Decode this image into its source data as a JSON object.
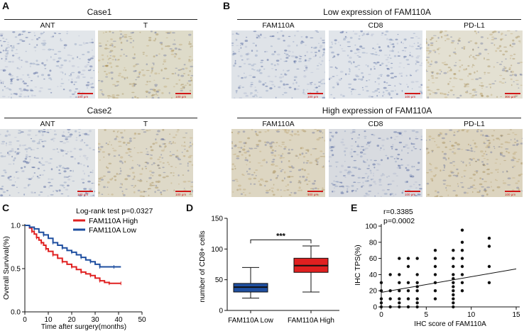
{
  "panels": {
    "A": {
      "label": "A",
      "case1": {
        "title": "Case1",
        "col1": "ANT",
        "col2": "T"
      },
      "case2": {
        "title": "Case2",
        "col1": "ANT",
        "col2": "T"
      },
      "scale": "100 μm"
    },
    "B": {
      "label": "B",
      "low": {
        "title": "Low expression of FAM110A",
        "cols": [
          "FAM110A",
          "CD8",
          "PD-L1"
        ]
      },
      "high": {
        "title": "High expression of FAM110A",
        "cols": [
          "FAM110A",
          "CD8",
          "PD-L1"
        ]
      },
      "scale": "100 μm"
    },
    "C": {
      "label": "C"
    },
    "D": {
      "label": "D",
      "significance": "***"
    },
    "E": {
      "label": "E",
      "stats_r": "r=0.3385",
      "stats_p": "p=0.0002"
    }
  },
  "colors": {
    "high": "#e02020",
    "low": "#1f4fa0",
    "box_low": "#1f4fa0",
    "box_high": "#e02020",
    "scale_bar": "#d01818"
  },
  "chart_data": [
    {
      "panel": "C",
      "type": "line",
      "title": "",
      "annotation": "Log-rank test p=0.0327",
      "xlabel": "Time after surgery(months)",
      "ylabel": "Overall Survival(%)",
      "xlim": [
        0,
        50
      ],
      "ylim": [
        0,
        1
      ],
      "xticks": [
        0,
        10,
        20,
        30,
        40,
        50
      ],
      "yticks": [
        0.0,
        0.5,
        1.0
      ],
      "ytick_labels": [
        "0.0",
        "0.5",
        "1.0"
      ],
      "series": [
        {
          "name": "FAM110A High",
          "color": "#e02020",
          "points": [
            [
              0,
              1.0
            ],
            [
              2,
              0.97
            ],
            [
              3,
              0.93
            ],
            [
              4,
              0.9
            ],
            [
              5,
              0.86
            ],
            [
              6,
              0.83
            ],
            [
              7,
              0.8
            ],
            [
              8,
              0.77
            ],
            [
              9,
              0.73
            ],
            [
              10,
              0.7
            ],
            [
              12,
              0.66
            ],
            [
              14,
              0.62
            ],
            [
              16,
              0.58
            ],
            [
              18,
              0.55
            ],
            [
              20,
              0.52
            ],
            [
              22,
              0.49
            ],
            [
              24,
              0.46
            ],
            [
              26,
              0.44
            ],
            [
              28,
              0.42
            ],
            [
              30,
              0.39
            ],
            [
              32,
              0.36
            ],
            [
              34,
              0.34
            ],
            [
              36,
              0.33
            ],
            [
              38,
              0.33
            ],
            [
              41,
              0.33
            ]
          ]
        },
        {
          "name": "FAM110A Low",
          "color": "#1f4fa0",
          "points": [
            [
              0,
              1.0
            ],
            [
              2,
              0.98
            ],
            [
              4,
              0.96
            ],
            [
              6,
              0.92
            ],
            [
              8,
              0.89
            ],
            [
              10,
              0.85
            ],
            [
              12,
              0.8
            ],
            [
              14,
              0.77
            ],
            [
              16,
              0.74
            ],
            [
              18,
              0.71
            ],
            [
              20,
              0.69
            ],
            [
              22,
              0.66
            ],
            [
              24,
              0.63
            ],
            [
              26,
              0.6
            ],
            [
              28,
              0.58
            ],
            [
              30,
              0.55
            ],
            [
              32,
              0.52
            ],
            [
              34,
              0.52
            ],
            [
              38,
              0.52
            ],
            [
              41,
              0.52
            ]
          ]
        }
      ]
    },
    {
      "panel": "D",
      "type": "box",
      "ylabel": "number of CD8+ cells",
      "ylim": [
        0,
        150
      ],
      "yticks": [
        0,
        50,
        100,
        150
      ],
      "categories": [
        "FAM110A Low",
        "FAM110A High"
      ],
      "boxes": [
        {
          "name": "FAM110A Low",
          "min": 20,
          "q1": 30,
          "median": 38,
          "q3": 44,
          "max": 70,
          "color": "#1f4fa0"
        },
        {
          "name": "FAM110A High",
          "min": 30,
          "q1": 62,
          "median": 73,
          "q3": 85,
          "max": 105,
          "color": "#e02020"
        }
      ],
      "significance": "***"
    },
    {
      "panel": "E",
      "type": "scatter",
      "xlabel": "IHC score of FAM110A",
      "ylabel": "IHC TPS(%)",
      "xlim": [
        0,
        15
      ],
      "ylim": [
        0,
        100
      ],
      "xticks": [
        0,
        5,
        10,
        15
      ],
      "yticks": [
        0,
        20,
        40,
        60,
        80,
        100
      ],
      "points": [
        [
          0,
          0
        ],
        [
          0,
          5
        ],
        [
          0,
          10
        ],
        [
          0,
          20
        ],
        [
          0,
          30
        ],
        [
          1,
          0
        ],
        [
          1,
          10
        ],
        [
          1,
          20
        ],
        [
          1,
          40
        ],
        [
          2,
          0
        ],
        [
          2,
          5
        ],
        [
          2,
          10
        ],
        [
          2,
          20
        ],
        [
          2,
          30
        ],
        [
          2,
          40
        ],
        [
          2,
          60
        ],
        [
          3,
          0
        ],
        [
          3,
          10
        ],
        [
          3,
          20
        ],
        [
          3,
          30
        ],
        [
          3,
          50
        ],
        [
          3,
          60
        ],
        [
          4,
          0
        ],
        [
          4,
          5
        ],
        [
          4,
          10
        ],
        [
          4,
          20
        ],
        [
          4,
          25
        ],
        [
          4,
          30
        ],
        [
          4,
          40
        ],
        [
          4,
          60
        ],
        [
          6,
          10
        ],
        [
          6,
          20
        ],
        [
          6,
          30
        ],
        [
          6,
          40
        ],
        [
          6,
          50
        ],
        [
          6,
          60
        ],
        [
          6,
          70
        ],
        [
          8,
          0
        ],
        [
          8,
          5
        ],
        [
          8,
          10
        ],
        [
          8,
          15
        ],
        [
          8,
          20
        ],
        [
          8,
          25
        ],
        [
          8,
          30
        ],
        [
          8,
          35
        ],
        [
          8,
          40
        ],
        [
          8,
          50
        ],
        [
          8,
          60
        ],
        [
          8,
          70
        ],
        [
          9,
          20
        ],
        [
          9,
          30
        ],
        [
          9,
          40
        ],
        [
          9,
          50
        ],
        [
          9,
          60
        ],
        [
          9,
          70
        ],
        [
          9,
          80
        ],
        [
          9,
          95
        ],
        [
          12,
          30
        ],
        [
          12,
          50
        ],
        [
          12,
          75
        ],
        [
          12,
          85
        ]
      ],
      "fit": {
        "x0": 0,
        "y0": 18,
        "x1": 15,
        "y1": 47
      }
    }
  ]
}
